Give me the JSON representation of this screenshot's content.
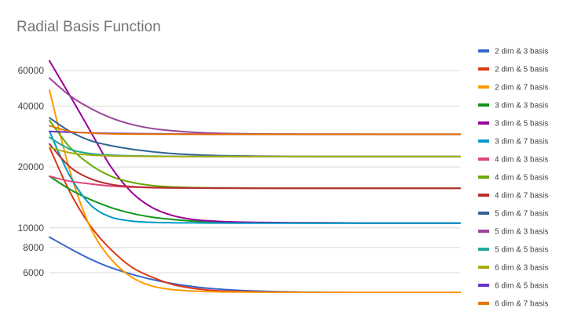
{
  "chart_data": {
    "type": "line",
    "title": "Radial Basis Function",
    "xlabel": "",
    "ylabel": "",
    "y_scale": "log",
    "ylim": [
      4500,
      75000
    ],
    "y_ticks": [
      6000,
      8000,
      10000,
      20000,
      40000,
      60000
    ],
    "y_tick_labels": [
      "6000",
      "8000",
      "10000",
      "20000",
      "40000",
      "60000"
    ],
    "x": [
      0,
      1,
      2,
      3,
      4,
      5,
      6,
      7,
      8,
      9,
      10,
      11,
      12,
      13,
      14,
      15,
      16,
      17,
      18,
      19,
      20
    ],
    "grid": "horizontal",
    "legend_position": "right",
    "series": [
      {
        "name": "2 dim & 3 basis",
        "color": "#3366cc",
        "values": [
          9000,
          7900,
          7000,
          6350,
          5900,
          5550,
          5300,
          5120,
          5000,
          4920,
          4870,
          4840,
          4820,
          4810,
          4805,
          4800,
          4800,
          4800,
          4800,
          4800,
          4800
        ]
      },
      {
        "name": "2 dim & 5 basis",
        "color": "#dc3912",
        "values": [
          25000,
          15000,
          10200,
          7800,
          6400,
          5700,
          5250,
          5020,
          4900,
          4850,
          4820,
          4810,
          4805,
          4800,
          4800,
          4800,
          4800,
          4800,
          4800,
          4800,
          4800
        ]
      },
      {
        "name": "2 dim & 7 basis",
        "color": "#ff9900",
        "values": [
          48000,
          19000,
          10000,
          7000,
          5700,
          5150,
          4950,
          4870,
          4830,
          4815,
          4805,
          4800,
          4800,
          4800,
          4800,
          4800,
          4800,
          4800,
          4800,
          4800,
          4800
        ]
      },
      {
        "name": "3 dim & 3 basis",
        "color": "#109618",
        "values": [
          18000,
          15500,
          13800,
          12600,
          11800,
          11300,
          11000,
          10800,
          10700,
          10650,
          10600,
          10580,
          10570,
          10560,
          10555,
          10550,
          10550,
          10550,
          10550,
          10550,
          10550
        ]
      },
      {
        "name": "3 dim & 5 basis",
        "color": "#990099",
        "values": [
          67000,
          45000,
          30000,
          20000,
          15000,
          12600,
          11500,
          11000,
          10800,
          10700,
          10650,
          10620,
          10600,
          10590,
          10580,
          10570,
          10560,
          10560,
          10560,
          10560,
          10560
        ]
      },
      {
        "name": "3 dim & 7 basis",
        "color": "#0099c6",
        "values": [
          30000,
          18000,
          13000,
          11300,
          10800,
          10650,
          10600,
          10580,
          10570,
          10560,
          10555,
          10550,
          10550,
          10550,
          10550,
          10550,
          10550,
          10550,
          10550,
          10550,
          10550
        ]
      },
      {
        "name": "4 dim & 3 basis",
        "color": "#dd4477",
        "values": [
          18000,
          17000,
          16500,
          16100,
          15900,
          15800,
          15760,
          15740,
          15720,
          15710,
          15700,
          15700,
          15700,
          15700,
          15700,
          15700,
          15700,
          15700,
          15700,
          15700,
          15700
        ]
      },
      {
        "name": "4 dim & 5 basis",
        "color": "#66aa00",
        "values": [
          34000,
          25000,
          20500,
          18000,
          16800,
          16200,
          15950,
          15820,
          15760,
          15730,
          15710,
          15700,
          15700,
          15700,
          15700,
          15700,
          15700,
          15700,
          15700,
          15700,
          15700
        ]
      },
      {
        "name": "4 dim & 7 basis",
        "color": "#b82e2e",
        "values": [
          26000,
          20000,
          17500,
          16400,
          16000,
          15850,
          15780,
          15740,
          15720,
          15710,
          15700,
          15700,
          15700,
          15700,
          15700,
          15700,
          15700,
          15700,
          15700,
          15700,
          15700
        ]
      },
      {
        "name": "5 dim & 7 basis",
        "color": "#316395",
        "values": [
          35000,
          30000,
          27000,
          25500,
          24500,
          23800,
          23300,
          23000,
          22800,
          22700,
          22650,
          22600,
          22570,
          22550,
          22540,
          22530,
          22520,
          22520,
          22520,
          22520,
          22520
        ]
      },
      {
        "name": "5 dim & 3 basis",
        "color": "#994499",
        "values": [
          55000,
          45000,
          39000,
          35000,
          32500,
          31000,
          30200,
          29700,
          29400,
          29250,
          29150,
          29100,
          29070,
          29050,
          29040,
          29030,
          29020,
          29020,
          29020,
          29020,
          29020
        ]
      },
      {
        "name": "5 dim & 5 basis",
        "color": "#22aa99",
        "values": [
          28000,
          24500,
          23300,
          22900,
          22700,
          22620,
          22580,
          22560,
          22540,
          22530,
          22520,
          22520,
          22520,
          22520,
          22520,
          22520,
          22520,
          22520,
          22520,
          22520,
          22520
        ]
      },
      {
        "name": "6 dim & 3 basis",
        "color": "#aaaa11",
        "values": [
          25000,
          23500,
          22900,
          22700,
          22600,
          22560,
          22540,
          22530,
          22520,
          22520,
          22520,
          22520,
          22520,
          22520,
          22520,
          22520,
          22520,
          22520,
          22520,
          22520,
          22520
        ]
      },
      {
        "name": "6 dim & 5 basis",
        "color": "#6633cc",
        "values": [
          30000,
          29700,
          29500,
          29350,
          29250,
          29180,
          29130,
          29100,
          29080,
          29060,
          29050,
          29040,
          29030,
          29020,
          29020,
          29020,
          29020,
          29020,
          29020,
          29020,
          29020
        ]
      },
      {
        "name": "6 dim & 7 basis",
        "color": "#e67300",
        "values": [
          32000,
          30000,
          29400,
          29200,
          29100,
          29050,
          29030,
          29020,
          29020,
          29020,
          29020,
          29020,
          29020,
          29020,
          29020,
          29020,
          29020,
          29020,
          29020,
          29020,
          29020
        ]
      }
    ]
  }
}
